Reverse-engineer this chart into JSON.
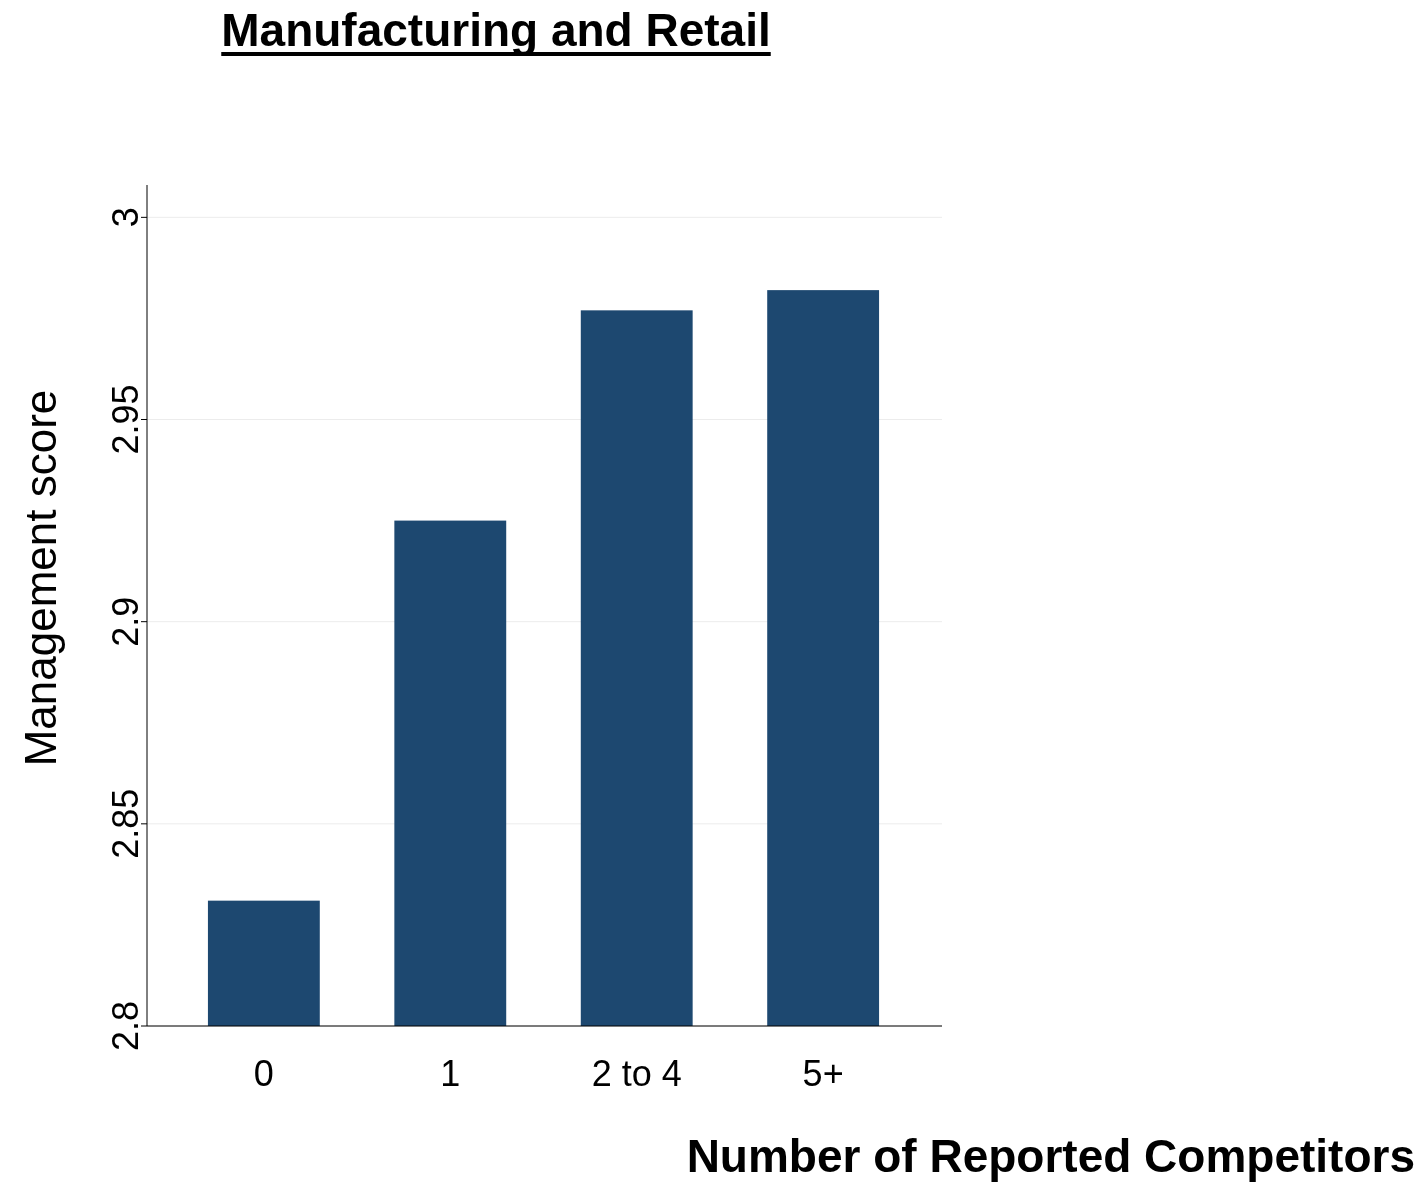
{
  "chart_data": {
    "type": "bar",
    "title": "Manufacturing and Retail",
    "xlabel": "Number of Reported Competitors",
    "ylabel": "Management score",
    "categories": [
      "0",
      "1",
      "2 to 4",
      "5+"
    ],
    "values": [
      2.831,
      2.925,
      2.977,
      2.982
    ],
    "color": "#1d4870",
    "ylim": [
      2.8,
      3.008
    ],
    "yticks": [
      2.8,
      2.85,
      2.9,
      2.95,
      3
    ],
    "grid": "y"
  }
}
